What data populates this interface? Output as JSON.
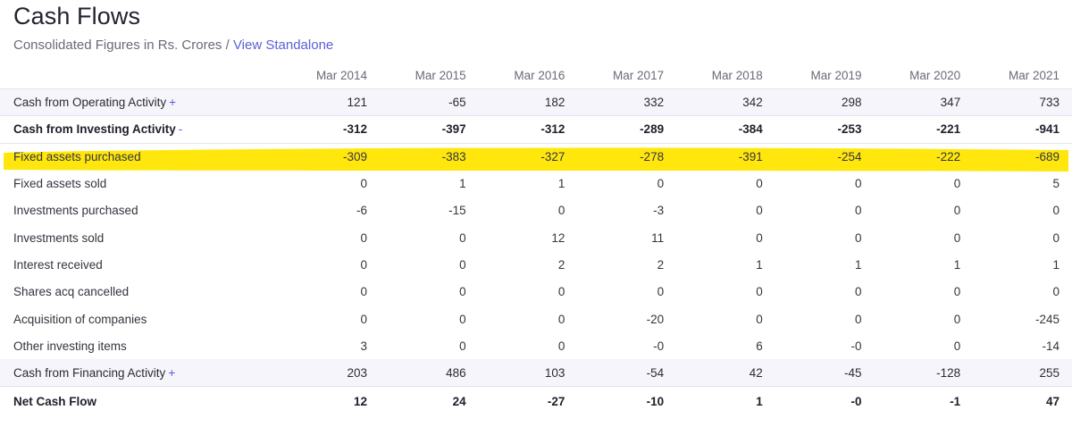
{
  "header": {
    "title": "Cash Flows",
    "subtitle_text": "Consolidated Figures in Rs. Crores / ",
    "view_link": "View Standalone"
  },
  "table": {
    "columns": [
      "Mar 2014",
      "Mar 2015",
      "Mar 2016",
      "Mar 2017",
      "Mar 2018",
      "Mar 2019",
      "Mar 2020",
      "Mar 2021"
    ],
    "rows": [
      {
        "label": "Cash from Operating Activity",
        "toggle": "+",
        "values": [
          "121",
          "-65",
          "182",
          "332",
          "342",
          "298",
          "347",
          "733"
        ]
      },
      {
        "label": "Cash from Investing Activity",
        "toggle": "-",
        "values": [
          "-312",
          "-397",
          "-312",
          "-289",
          "-384",
          "-253",
          "-221",
          "-941"
        ]
      },
      {
        "label": "Fixed assets purchased",
        "values": [
          "-309",
          "-383",
          "-327",
          "-278",
          "-391",
          "-254",
          "-222",
          "-689"
        ]
      },
      {
        "label": "Fixed assets sold",
        "values": [
          "0",
          "1",
          "1",
          "0",
          "0",
          "0",
          "0",
          "5"
        ]
      },
      {
        "label": "Investments purchased",
        "values": [
          "-6",
          "-15",
          "0",
          "-3",
          "0",
          "0",
          "0",
          "0"
        ]
      },
      {
        "label": "Investments sold",
        "values": [
          "0",
          "0",
          "12",
          "11",
          "0",
          "0",
          "0",
          "0"
        ]
      },
      {
        "label": "Interest received",
        "values": [
          "0",
          "0",
          "2",
          "2",
          "1",
          "1",
          "1",
          "1"
        ]
      },
      {
        "label": "Shares acq cancelled",
        "values": [
          "0",
          "0",
          "0",
          "0",
          "0",
          "0",
          "0",
          "0"
        ]
      },
      {
        "label": "Acquisition of companies",
        "values": [
          "0",
          "0",
          "0",
          "-20",
          "0",
          "0",
          "0",
          "-245"
        ]
      },
      {
        "label": "Other investing items",
        "values": [
          "3",
          "0",
          "0",
          "-0",
          "6",
          "-0",
          "0",
          "-14"
        ]
      },
      {
        "label": "Cash from Financing Activity",
        "toggle": "+",
        "values": [
          "203",
          "486",
          "103",
          "-54",
          "42",
          "-45",
          "-128",
          "255"
        ]
      },
      {
        "label": "Net Cash Flow",
        "values": [
          "12",
          "24",
          "-27",
          "-10",
          "1",
          "-0",
          "-1",
          "47"
        ]
      }
    ]
  },
  "colors": {
    "accent": "#5b5fd9",
    "highlighter": "#ffe600",
    "shaded_row": "#f5f5fb"
  }
}
